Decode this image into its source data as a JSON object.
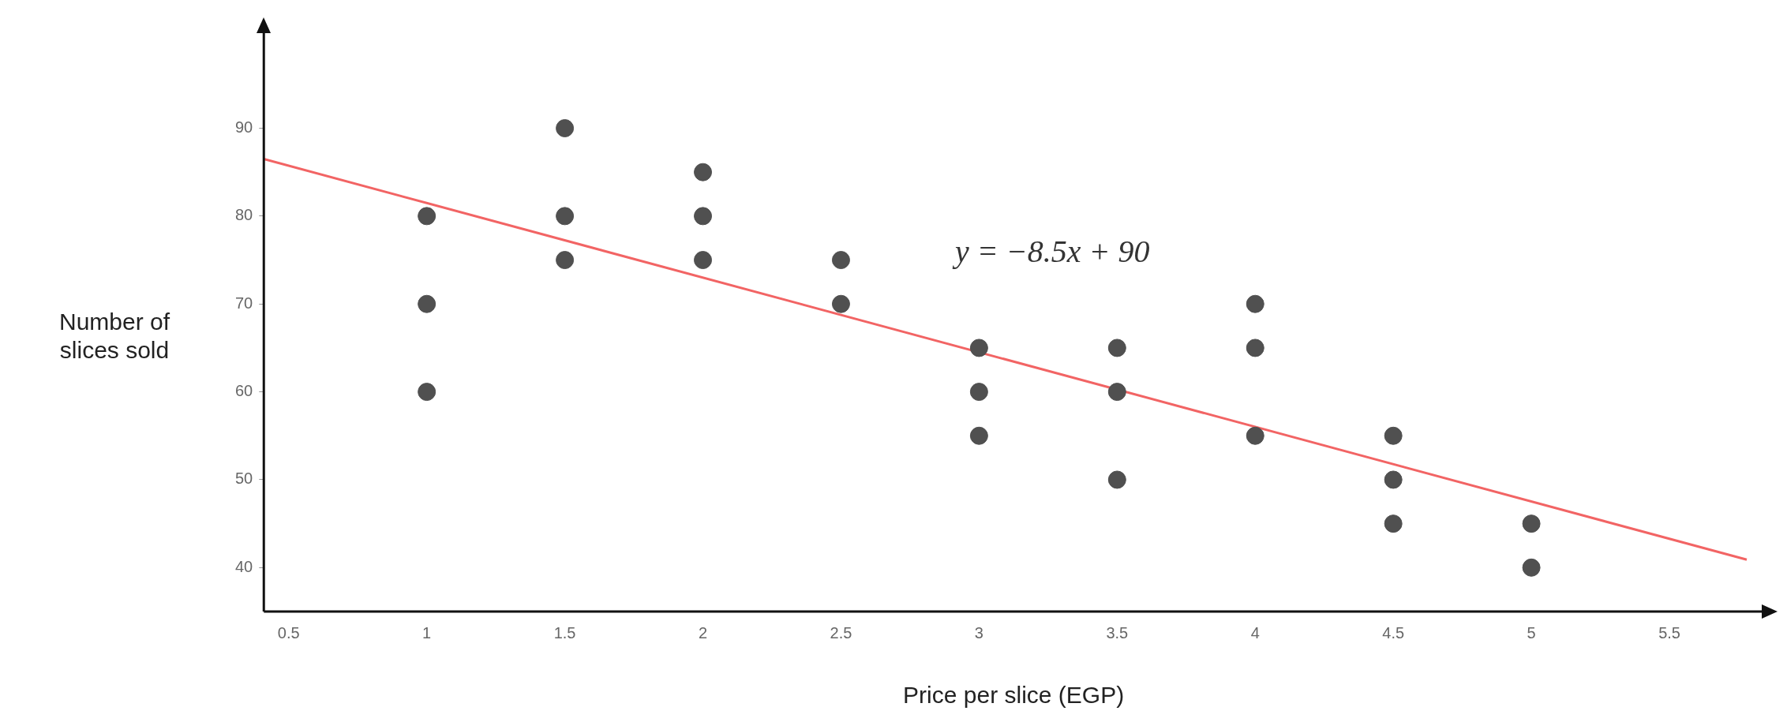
{
  "chart_data": {
    "type": "scatter",
    "xlabel": "Price per slice (EGP)",
    "ylabel": "Number of slices sold",
    "xlim": [
      0.41,
      5.84
    ],
    "ylim": [
      35,
      101
    ],
    "xticks": [
      0.5,
      1,
      1.5,
      2,
      2.5,
      3,
      3.5,
      4,
      4.5,
      5,
      5.5
    ],
    "yticks": [
      40,
      50,
      60,
      70,
      80,
      90
    ],
    "grid": false,
    "legend": false,
    "marker": "circle",
    "annotations": [
      "y = −8.5x + 90"
    ],
    "series": [
      {
        "color": "#505050",
        "x": [
          1,
          1,
          1,
          1.5,
          1.5,
          1.5,
          2,
          2,
          2,
          2.5,
          2.5,
          3,
          3,
          3,
          3.5,
          3.5,
          3.5,
          4,
          4,
          4,
          4.5,
          4.5,
          4.5,
          5,
          5
        ],
        "values": [
          80,
          70,
          60,
          90,
          80,
          75,
          85,
          80,
          75,
          75,
          70,
          65,
          60,
          55,
          65,
          60,
          50,
          70,
          65,
          55,
          55,
          50,
          45,
          45,
          40
        ]
      },
      {
        "type": "line",
        "color": "#f26464",
        "marker": "none",
        "x": [
          0.41,
          5.78
        ],
        "values": [
          86.5,
          40.9
        ]
      }
    ]
  }
}
